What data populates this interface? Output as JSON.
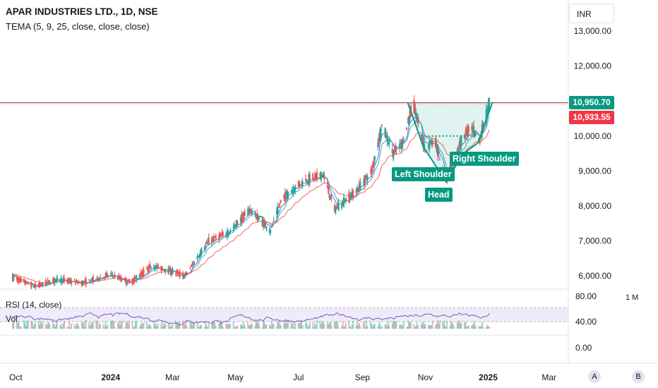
{
  "header": {
    "title": "APAR INDUSTRIES LTD., 1D, NSE",
    "indicator": "TEMA (5, 9, 25, close, close, close)",
    "currency": "INR"
  },
  "price_tags": {
    "current": "10,950.70",
    "secondary": "10,933.55"
  },
  "patterns": {
    "left_shoulder": "Left Shoulder",
    "head": "Head",
    "right_shoulder": "Right Shoulder"
  },
  "subpanes": {
    "rsi_label": "RSI (14, close)",
    "vol_label": "Vol",
    "timeframe": "1 M"
  },
  "buttons": {
    "a": "A",
    "b": "B"
  },
  "colors": {
    "up": "#26a69a",
    "down": "#ef5350",
    "tema_fast": "#2962ff",
    "tema_mid": "#26a69a",
    "tema_slow": "#ef5350",
    "pattern": "#089981",
    "rsi": "#7e57c2",
    "hline": "#b22833"
  },
  "chart_data": {
    "type": "candlestick",
    "title": "APAR INDUSTRIES LTD., 1D, NSE",
    "y_ticks": [
      "13,000.00",
      "12,000.00",
      "11,000.00",
      "10,000.00",
      "9,000.00",
      "8,000.00",
      "7,000.00",
      "6,000.00"
    ],
    "x_ticks": [
      "Oct",
      "2024",
      "Mar",
      "May",
      "Jul",
      "Sep",
      "Nov",
      "2025",
      "Mar"
    ],
    "ylim": [
      5700,
      13300
    ],
    "horizontal_line": 10950.7,
    "neckline": 10000,
    "price_path": [
      {
        "date": "2023-09-28",
        "close": 5950
      },
      {
        "date": "2023-10-20",
        "close": 5700
      },
      {
        "date": "2023-11-10",
        "close": 5900
      },
      {
        "date": "2023-12-05",
        "close": 5800
      },
      {
        "date": "2024-01-01",
        "close": 6050
      },
      {
        "date": "2024-01-20",
        "close": 5800
      },
      {
        "date": "2024-02-10",
        "close": 6300
      },
      {
        "date": "2024-02-27",
        "close": 6150
      },
      {
        "date": "2024-03-13",
        "close": 6000
      },
      {
        "date": "2024-04-05",
        "close": 7000
      },
      {
        "date": "2024-04-25",
        "close": 7250
      },
      {
        "date": "2024-05-15",
        "close": 7900
      },
      {
        "date": "2024-06-04",
        "close": 7300
      },
      {
        "date": "2024-06-15",
        "close": 8200
      },
      {
        "date": "2024-07-05",
        "close": 8700
      },
      {
        "date": "2024-07-25",
        "close": 8900
      },
      {
        "date": "2024-08-05",
        "close": 7900
      },
      {
        "date": "2024-08-25",
        "close": 8400
      },
      {
        "date": "2024-09-10",
        "close": 9000
      },
      {
        "date": "2024-09-20",
        "close": 10300
      },
      {
        "date": "2024-10-01",
        "close": 9500
      },
      {
        "date": "2024-10-10",
        "close": 9800
      },
      {
        "date": "2024-10-20",
        "close": 10950
      },
      {
        "date": "2024-11-01",
        "close": 9600
      },
      {
        "date": "2024-11-10",
        "close": 9900
      },
      {
        "date": "2024-11-21",
        "close": 8700
      },
      {
        "date": "2024-12-05",
        "close": 9800
      },
      {
        "date": "2024-12-15",
        "close": 10300
      },
      {
        "date": "2024-12-24",
        "close": 9900
      },
      {
        "date": "2025-01-02",
        "close": 10950
      }
    ],
    "rsi": {
      "name": "RSI (14, close)",
      "band": [
        40,
        80
      ],
      "ticks": [
        "80.00",
        "40.00",
        "0.00"
      ],
      "last": 64
    }
  }
}
